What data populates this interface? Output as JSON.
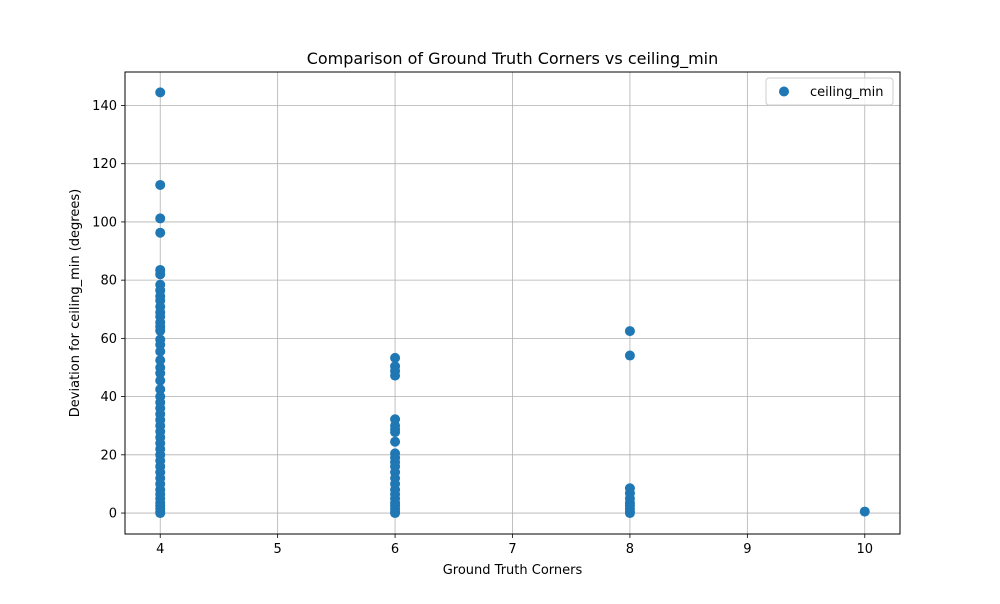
{
  "chart_data": {
    "type": "scatter",
    "title": "Comparison of Ground Truth Corners vs ceiling_min",
    "xlabel": "Ground Truth Corners",
    "ylabel": "Deviation for ceiling_min (degrees)",
    "xlim": [
      3.7,
      10.3
    ],
    "ylim": [
      -7.2,
      151.5
    ],
    "xticks": [
      4,
      5,
      6,
      7,
      8,
      9,
      10
    ],
    "yticks": [
      0,
      20,
      40,
      60,
      80,
      100,
      120,
      140
    ],
    "grid": true,
    "legend_position": "top-right",
    "series": [
      {
        "name": "ceiling_min",
        "color": "#1f77b4",
        "points": [
          [
            4,
            144.5
          ],
          [
            4,
            112.7
          ],
          [
            4,
            101.2
          ],
          [
            4,
            96.3
          ],
          [
            4,
            83.5
          ],
          [
            4,
            82.0
          ],
          [
            4,
            78.4
          ],
          [
            4,
            76.5
          ],
          [
            4,
            74.5
          ],
          [
            4,
            73.0
          ],
          [
            4,
            70.9
          ],
          [
            4,
            69.0
          ],
          [
            4,
            67.5
          ],
          [
            4,
            65.5
          ],
          [
            4,
            64.0
          ],
          [
            4,
            62.6
          ],
          [
            4,
            59.6
          ],
          [
            4,
            57.8
          ],
          [
            4,
            55.5
          ],
          [
            4,
            52.5
          ],
          [
            4,
            50.0
          ],
          [
            4,
            48.0
          ],
          [
            4,
            45.5
          ],
          [
            4,
            42.5
          ],
          [
            4,
            40.0
          ],
          [
            4,
            38.0
          ],
          [
            4,
            36.0
          ],
          [
            4,
            34.0
          ],
          [
            4,
            32.0
          ],
          [
            4,
            30.0
          ],
          [
            4,
            28.0
          ],
          [
            4,
            26.0
          ],
          [
            4,
            24.0
          ],
          [
            4,
            22.0
          ],
          [
            4,
            20.0
          ],
          [
            4,
            18.0
          ],
          [
            4,
            16.0
          ],
          [
            4,
            14.0
          ],
          [
            4,
            12.0
          ],
          [
            4,
            10.0
          ],
          [
            4,
            8.0
          ],
          [
            4,
            6.5
          ],
          [
            4,
            5.0
          ],
          [
            4,
            3.5
          ],
          [
            4,
            2.5
          ],
          [
            4,
            1.5
          ],
          [
            4,
            0.5
          ],
          [
            4,
            0.0
          ],
          [
            6,
            53.3
          ],
          [
            6,
            50.4
          ],
          [
            6,
            48.8
          ],
          [
            6,
            47.2
          ],
          [
            6,
            32.2
          ],
          [
            6,
            30.0
          ],
          [
            6,
            28.8
          ],
          [
            6,
            27.8
          ],
          [
            6,
            24.5
          ],
          [
            6,
            20.5
          ],
          [
            6,
            19.0
          ],
          [
            6,
            17.5
          ],
          [
            6,
            16.0
          ],
          [
            6,
            14.0
          ],
          [
            6,
            12.0
          ],
          [
            6,
            10.0
          ],
          [
            6,
            8.0
          ],
          [
            6,
            6.5
          ],
          [
            6,
            5.0
          ],
          [
            6,
            3.5
          ],
          [
            6,
            2.5
          ],
          [
            6,
            1.5
          ],
          [
            6,
            0.5
          ],
          [
            6,
            0.0
          ],
          [
            8,
            62.5
          ],
          [
            8,
            54.1
          ],
          [
            8,
            8.5
          ],
          [
            8,
            6.8
          ],
          [
            8,
            5.0
          ],
          [
            8,
            3.5
          ],
          [
            8,
            2.5
          ],
          [
            8,
            1.5
          ],
          [
            8,
            0.5
          ],
          [
            8,
            0.0
          ],
          [
            10,
            0.5
          ]
        ]
      }
    ]
  }
}
